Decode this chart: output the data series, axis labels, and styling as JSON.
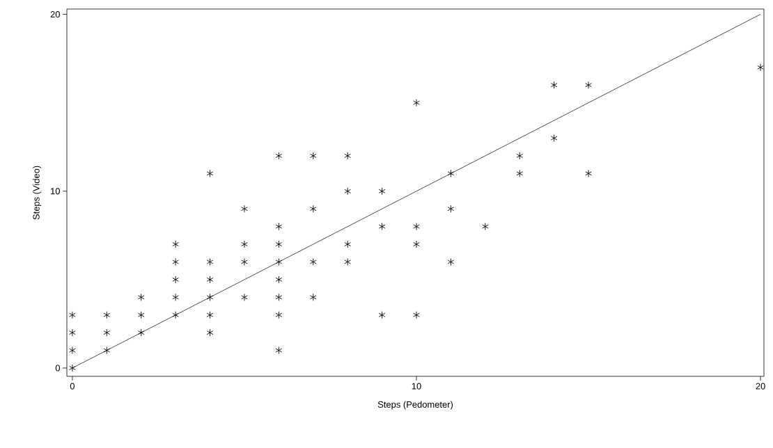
{
  "chart_data": {
    "type": "scatter",
    "xlabel": "Steps (Pedometer)",
    "ylabel": "Steps (Video)",
    "xlim": [
      -0.16,
      20.1
    ],
    "ylim": [
      -0.47,
      20.3
    ],
    "xticks": [
      0,
      10,
      20
    ],
    "yticks": [
      0,
      10,
      20
    ],
    "grid": false,
    "marker": "cross",
    "series": [
      {
        "color": "#000000",
        "x": [
          0,
          0,
          0,
          0,
          1,
          1,
          1,
          2,
          2,
          2,
          3,
          3,
          3,
          3,
          3,
          4,
          4,
          4,
          4,
          4,
          4,
          5,
          5,
          5,
          5,
          6,
          6,
          6,
          6,
          6,
          6,
          6,
          6,
          7,
          7,
          7,
          7,
          8,
          8,
          8,
          8,
          9,
          9,
          9,
          10,
          10,
          10,
          10,
          11,
          11,
          11,
          12,
          13,
          13,
          14,
          14,
          15,
          15,
          20
        ],
        "values": [
          3,
          2,
          1,
          0,
          3,
          2,
          1,
          4,
          3,
          2,
          7,
          6,
          5,
          4,
          3,
          11,
          6,
          5,
          4,
          3,
          2,
          9,
          7,
          6,
          4,
          12,
          8,
          7,
          6,
          5,
          4,
          3,
          1,
          12,
          9,
          6,
          4,
          12,
          10,
          7,
          6,
          10,
          8,
          3,
          15,
          8,
          7,
          3,
          11,
          9,
          6,
          8,
          12,
          11,
          16,
          13,
          16,
          11,
          17
        ]
      },
      {
        "type": "line",
        "marker": "none",
        "color": "#000000",
        "x": [
          0,
          20
        ],
        "values": [
          0,
          20
        ]
      }
    ]
  }
}
